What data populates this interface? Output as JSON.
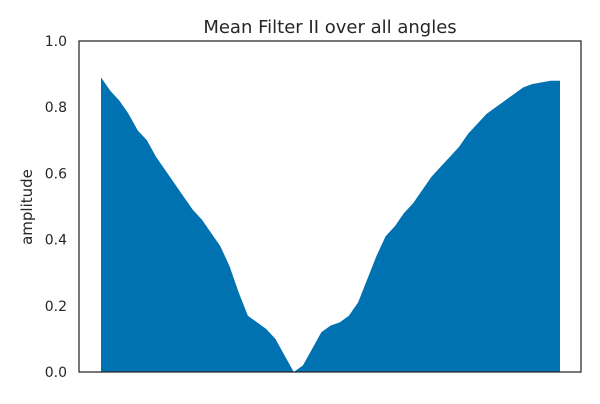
{
  "chart_data": {
    "type": "area",
    "title": "Mean Filter II over all angles",
    "xlabel": "",
    "ylabel": "amplitude",
    "ylim": [
      0.0,
      1.0
    ],
    "yticks": [
      0.0,
      0.2,
      0.4,
      0.6,
      0.8,
      1.0
    ],
    "ytick_labels": [
      "0.0",
      "0.2",
      "0.4",
      "0.6",
      "0.8",
      "1.0"
    ],
    "xticks_visible": false,
    "grid": false,
    "legend": "none",
    "x_domain": [
      0,
      100
    ],
    "x": [
      0,
      2,
      4,
      6,
      8,
      10,
      12,
      14,
      16,
      18,
      20,
      22,
      24,
      26,
      28,
      30,
      32,
      34,
      36,
      38,
      40,
      42,
      44,
      46,
      48,
      50,
      52,
      54,
      56,
      58,
      60,
      62,
      64,
      66,
      68,
      70,
      72,
      74,
      76,
      78,
      80,
      82,
      84,
      86,
      88,
      90,
      92,
      94,
      96,
      98,
      100
    ],
    "values": [
      0.89,
      0.85,
      0.82,
      0.78,
      0.73,
      0.7,
      0.65,
      0.61,
      0.57,
      0.53,
      0.49,
      0.46,
      0.42,
      0.38,
      0.32,
      0.24,
      0.17,
      0.15,
      0.13,
      0.1,
      0.05,
      0.0,
      0.02,
      0.07,
      0.12,
      0.14,
      0.15,
      0.17,
      0.21,
      0.28,
      0.35,
      0.41,
      0.44,
      0.48,
      0.51,
      0.55,
      0.59,
      0.62,
      0.65,
      0.68,
      0.72,
      0.75,
      0.78,
      0.8,
      0.82,
      0.84,
      0.86,
      0.87,
      0.875,
      0.88,
      0.88
    ],
    "colors": {
      "fill": "#0072B2",
      "axes": "#262626",
      "text": "#262626",
      "background": "#ffffff"
    }
  }
}
